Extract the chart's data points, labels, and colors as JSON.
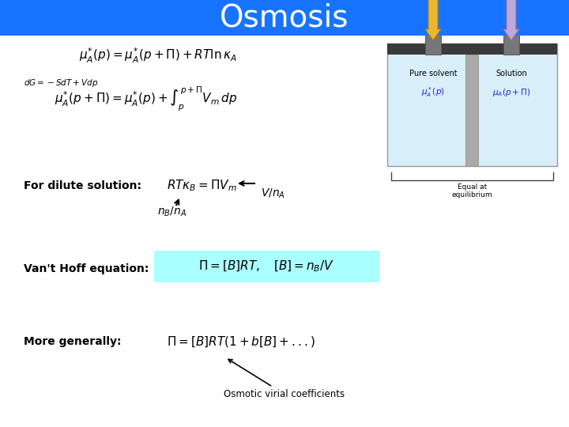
{
  "title": "Osmosis",
  "title_bg_color": "#1874FF",
  "title_text_color": "#FFFFFF",
  "slide_bg_color": "#FFFFFF",
  "eq1": "$\\mu_A^{*}(p) = \\mu_A^{*}(p+\\Pi) + RT\\ln\\kappa_A$",
  "eq_dG": "$dG = -SdT + Vdp$",
  "eq2": "$\\mu_A^{*}(p+\\Pi) = \\mu_A^{*}(p) + \\int_{p}^{p+\\Pi} V_m\\,dp$",
  "label_dilute": "For dilute solution:",
  "label_vanthoff": "Van't Hoff equation:",
  "label_generally": "More generally:",
  "annotation_virial": "Osmotic virial coefficients",
  "eq4_bg": "#AAFFFF"
}
